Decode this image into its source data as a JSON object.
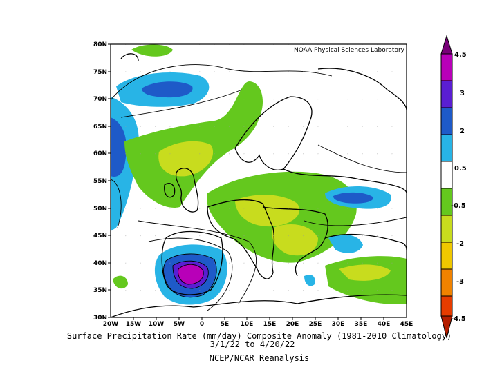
{
  "header": {
    "lab": "NOAA Physical Sciences Laboratory"
  },
  "caption": {
    "line1": "Surface Precipitation Rate (mm/day) Composite Anomaly (1981-2010 Climatology)",
    "line2": "3/1/22  to 4/20/22",
    "line3": "NCEP/NCAR Reanalysis"
  },
  "axes": {
    "lat_labels": [
      "80N",
      "75N",
      "70N",
      "65N",
      "60N",
      "55N",
      "50N",
      "45N",
      "40N",
      "35N",
      "30N"
    ],
    "lon_labels": [
      "20W",
      "15W",
      "10W",
      "5W",
      "0",
      "5E",
      "10E",
      "15E",
      "20E",
      "25E",
      "30E",
      "35E",
      "40E",
      "45E"
    ]
  },
  "colorbar": {
    "ticks": [
      "4.5",
      "3",
      "2",
      "0.5",
      "-0.5",
      "-2",
      "-3",
      "-4.5"
    ],
    "colors": {
      "top_arrow": "#780078",
      "c1": "#b800b8",
      "c2": "#5a1ed2",
      "c3": "#1e5ac8",
      "c4": "#28b4e6",
      "c5": "#ffffff",
      "c6": "#64c81e",
      "c7": "#c8dc1e",
      "c8": "#f0c800",
      "c9": "#f08200",
      "c10": "#e63c00",
      "bottom_arrow": "#b41e00"
    }
  }
}
